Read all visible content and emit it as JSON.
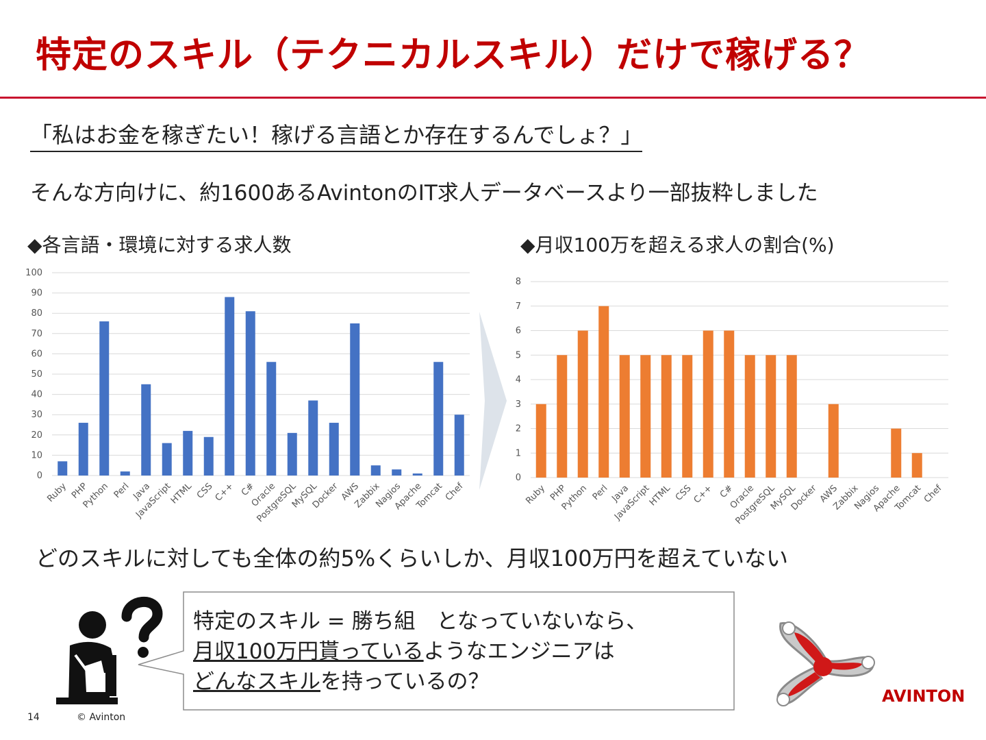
{
  "slide": {
    "title": "特定のスキル（テクニカルスキル）だけで稼げる？",
    "quote": "「私はお金を稼ぎたい！稼げる言語とか存在するんでしょ？」",
    "intro": "そんな方向けに、約1600あるAvintonのIT求人データベースより一部抜粋しました",
    "conclusion": "どのスキルに対しても全体の約5%くらいしか、月収100万円を超えていない",
    "callout": {
      "line1": "特定のスキル = 勝ち組　となっていないなら、",
      "line2_underlined": "月収100万円貰っている",
      "line2_rest": "ようなエンジニアは",
      "line3_underlined": "どんなスキル",
      "line3_rest": "を持っているの？"
    },
    "logo_text": "AVINTON",
    "page_number": "14",
    "copyright": "© Avinton",
    "colors": {
      "title": "#c00000",
      "rule": "#c8102e",
      "blue": "#4472c4",
      "orange": "#ed7d31"
    },
    "icons": [
      "person-thinking-icon",
      "question-mark-icon",
      "right-arrow-icon",
      "avinton-logo-icon"
    ]
  },
  "chart_data": [
    {
      "type": "bar",
      "title": "◆各言語・環境に対する求人数",
      "categories": [
        "Ruby",
        "PHP",
        "Python",
        "Perl",
        "Java",
        "JavaScript",
        "HTML",
        "CSS",
        "C++",
        "C#",
        "Oracle",
        "PostgreSQL",
        "MySQL",
        "Docker",
        "AWS",
        "Zabbix",
        "Nagios",
        "Apache",
        "Tomcat",
        "Chef"
      ],
      "values": [
        7,
        26,
        76,
        2,
        45,
        16,
        22,
        19,
        88,
        81,
        56,
        21,
        37,
        26,
        75,
        5,
        3,
        1,
        56,
        30
      ],
      "ylim": [
        0,
        100
      ],
      "yticks": [
        0,
        10,
        20,
        30,
        40,
        50,
        60,
        70,
        80,
        90,
        100
      ],
      "color": "#4472c4",
      "grid": true
    },
    {
      "type": "bar",
      "title": "◆月収100万を超える求人の割合(%)",
      "categories": [
        "Ruby",
        "PHP",
        "Python",
        "Perl",
        "Java",
        "JavaScript",
        "HTML",
        "CSS",
        "C++",
        "C#",
        "Oracle",
        "PostgreSQL",
        "MySQL",
        "Docker",
        "AWS",
        "Zabbix",
        "Nagios",
        "Apache",
        "Tomcat",
        "Chef"
      ],
      "values": [
        3,
        5,
        6,
        7,
        5,
        5,
        5,
        5,
        6,
        6,
        5,
        5,
        5,
        0,
        3,
        0,
        0,
        2,
        1,
        0
      ],
      "ylim": [
        0,
        8
      ],
      "yticks": [
        0,
        1,
        2,
        3,
        4,
        5,
        6,
        7,
        8
      ],
      "color": "#ed7d31",
      "grid": true
    }
  ]
}
